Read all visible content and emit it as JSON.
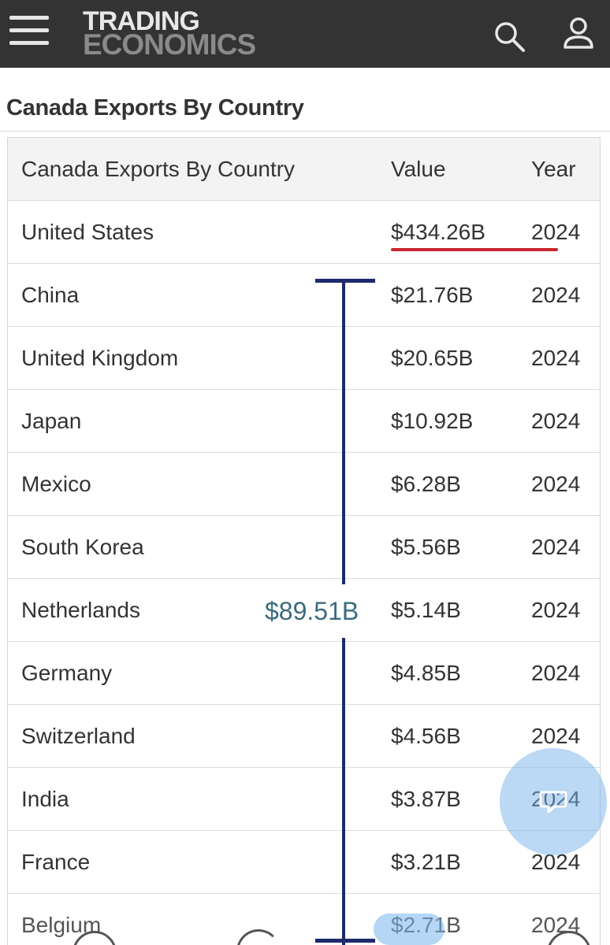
{
  "header": {
    "logo_line1": "TRADING",
    "logo_line2": "ECONOMICS",
    "menu_icon": "hamburger-icon",
    "search_icon": "search-icon",
    "user_icon": "user-icon"
  },
  "page_title": "Canada Exports By Country",
  "table": {
    "columns": [
      "Canada Exports By Country",
      "Value",
      "Year"
    ],
    "rows": [
      {
        "country": "United States",
        "value": "$434.26B",
        "year": "2024"
      },
      {
        "country": "China",
        "value": "$21.76B",
        "year": "2024"
      },
      {
        "country": "United Kingdom",
        "value": "$20.65B",
        "year": "2024"
      },
      {
        "country": "Japan",
        "value": "$10.92B",
        "year": "2024"
      },
      {
        "country": "Mexico",
        "value": "$6.28B",
        "year": "2024"
      },
      {
        "country": "South Korea",
        "value": "$5.56B",
        "year": "2024"
      },
      {
        "country": "Netherlands",
        "value": "$5.14B",
        "year": "2024"
      },
      {
        "country": "Germany",
        "value": "$4.85B",
        "year": "2024"
      },
      {
        "country": "Switzerland",
        "value": "$4.56B",
        "year": "2024"
      },
      {
        "country": "India",
        "value": "$3.87B",
        "year": "2024"
      },
      {
        "country": "France",
        "value": "$3.21B",
        "year": "2024"
      },
      {
        "country": "Belgium",
        "value": "$2.71B",
        "year": "2024"
      }
    ]
  },
  "annotation": {
    "bracket_total": "$89.51B",
    "underline_color": "#c8282e",
    "bracket_color": "#1d2a6e"
  },
  "chat_button": {
    "icon": "chat-bubble-icon"
  }
}
